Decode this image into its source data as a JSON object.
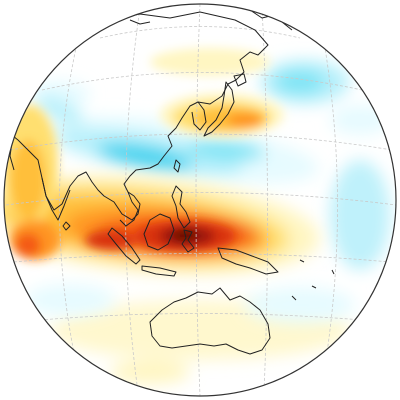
{
  "map": {
    "projection": "orthographic",
    "view": "globe-centered-on-western-pacific",
    "field": "anomaly-shading",
    "colors": {
      "background": "#ffffff",
      "ocean": "#ffffff",
      "graticule": "#c9c9c9",
      "coastline": "#222222",
      "globe_outline": "#333333",
      "positive_scale": [
        "#fff6c2",
        "#ffdf70",
        "#ffbf3a",
        "#ff9420",
        "#f45a17",
        "#d8300f",
        "#9e1208",
        "#5a0a04"
      ],
      "negative_scale": [
        "#e6fbff",
        "#b8f0fb",
        "#7ee4f5",
        "#45d4ef",
        "#21c2e6"
      ]
    },
    "anomalies": [
      {
        "id": "tropical-warm-band",
        "sign": "positive",
        "level": "strong"
      },
      {
        "id": "maritime-continent-core",
        "sign": "positive",
        "level": "maximum"
      },
      {
        "id": "western-indian-ocean-lobe",
        "sign": "positive",
        "level": "strong"
      },
      {
        "id": "subtropical-cool-band",
        "sign": "negative",
        "level": "moderate"
      },
      {
        "id": "japan-warm-patch",
        "sign": "positive",
        "level": "moderate"
      },
      {
        "id": "northeast-pacific-cool",
        "sign": "negative",
        "level": "weak"
      },
      {
        "id": "eastern-tropical-cool",
        "sign": "negative",
        "level": "weak"
      },
      {
        "id": "southern-weak-warm",
        "sign": "positive",
        "level": "weak"
      }
    ],
    "landmasses": [
      "asia",
      "japan",
      "philippines",
      "borneo",
      "sumatra",
      "java",
      "sulawesi",
      "new-guinea",
      "australia",
      "arabia",
      "india",
      "sri-lanka",
      "taiwan"
    ]
  }
}
